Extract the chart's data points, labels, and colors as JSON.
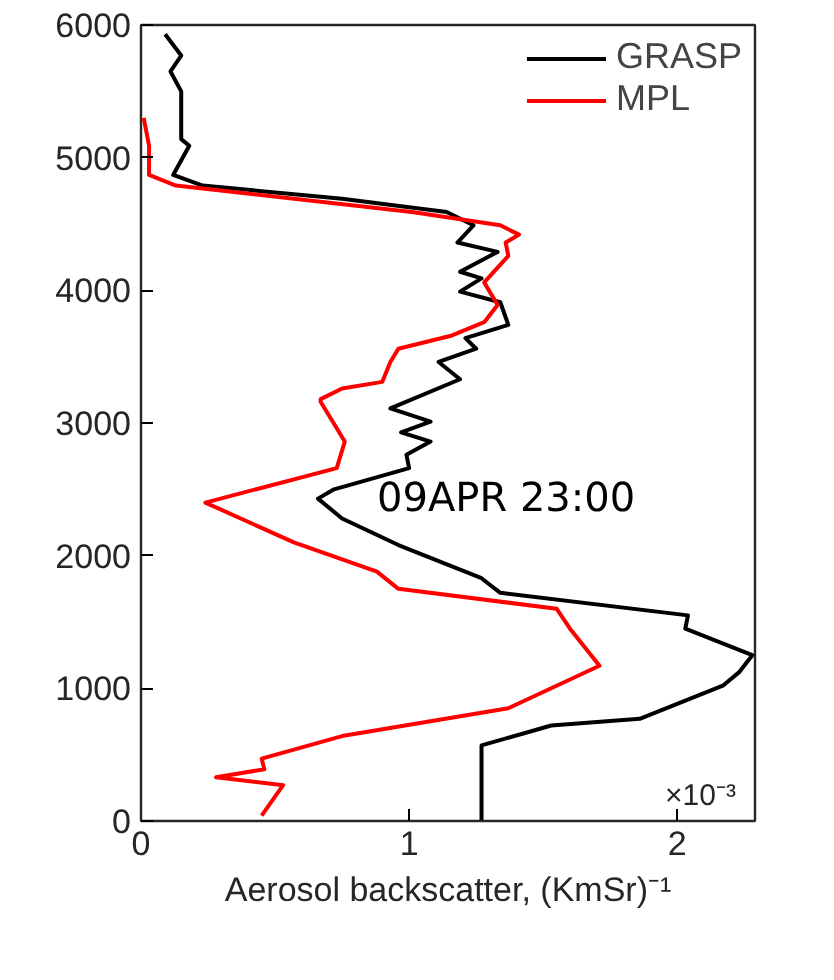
{
  "chart_data": {
    "type": "line",
    "xlabel": "Aerosol backscatter, (KmSr)⁻¹",
    "annotations": [
      "×10⁻³",
      "09APR 23:00"
    ],
    "xlim": [
      0,
      2.29
    ],
    "xticks": [
      0,
      1,
      2
    ],
    "ylim": [
      0,
      6000
    ],
    "yticks": [
      0,
      1000,
      2000,
      3000,
      4000,
      5000,
      6000
    ],
    "grid": false,
    "legend": "top right",
    "marker": "none",
    "line_style": "solid",
    "series": [
      {
        "name": "GRASP",
        "color": "#000000",
        "x": [
          1.27,
          1.27,
          1.53,
          1.86,
          2.17,
          2.23,
          2.28,
          2.03,
          2.04,
          1.34,
          1.27,
          0.96,
          0.75,
          0.66,
          0.72,
          1.0,
          0.99,
          1.08,
          0.97,
          1.08,
          0.93,
          1.19,
          1.11,
          1.25,
          1.21,
          1.37,
          1.34,
          1.19,
          1.27,
          1.19,
          1.33,
          1.18,
          1.24,
          1.14,
          0.75,
          0.23,
          0.12,
          0.18,
          0.15,
          0.15,
          0.11,
          0.15,
          0.09
        ],
        "values": [
          0,
          570,
          720,
          770,
          1020,
          1120,
          1250,
          1450,
          1550,
          1720,
          1830,
          2080,
          2280,
          2430,
          2500,
          2660,
          2760,
          2860,
          2930,
          3010,
          3110,
          3330,
          3460,
          3560,
          3640,
          3740,
          3910,
          3990,
          4090,
          4140,
          4290,
          4360,
          4490,
          4590,
          4690,
          4790,
          4870,
          5090,
          5140,
          5500,
          5650,
          5770,
          5930
        ]
      },
      {
        "name": "MPL",
        "color": "#ff0000",
        "x": [
          0.45,
          0.53,
          0.28,
          0.46,
          0.45,
          0.75,
          1.37,
          1.71,
          1.6,
          1.55,
          0.96,
          0.88,
          0.57,
          0.24,
          0.73,
          0.76,
          0.7,
          0.67,
          0.67,
          0.75,
          0.9,
          0.93,
          0.96,
          1.16,
          1.28,
          1.33,
          1.28,
          1.37,
          1.36,
          1.41,
          1.34,
          1.01,
          0.13,
          0.03,
          0.03,
          0.01
        ],
        "values": [
          40,
          270,
          330,
          390,
          470,
          640,
          850,
          1170,
          1450,
          1600,
          1750,
          1880,
          2100,
          2400,
          2660,
          2860,
          3060,
          3160,
          3180,
          3260,
          3310,
          3460,
          3560,
          3660,
          3760,
          3890,
          4060,
          4260,
          4360,
          4420,
          4490,
          4590,
          4790,
          4870,
          5090,
          5300
        ]
      }
    ]
  }
}
